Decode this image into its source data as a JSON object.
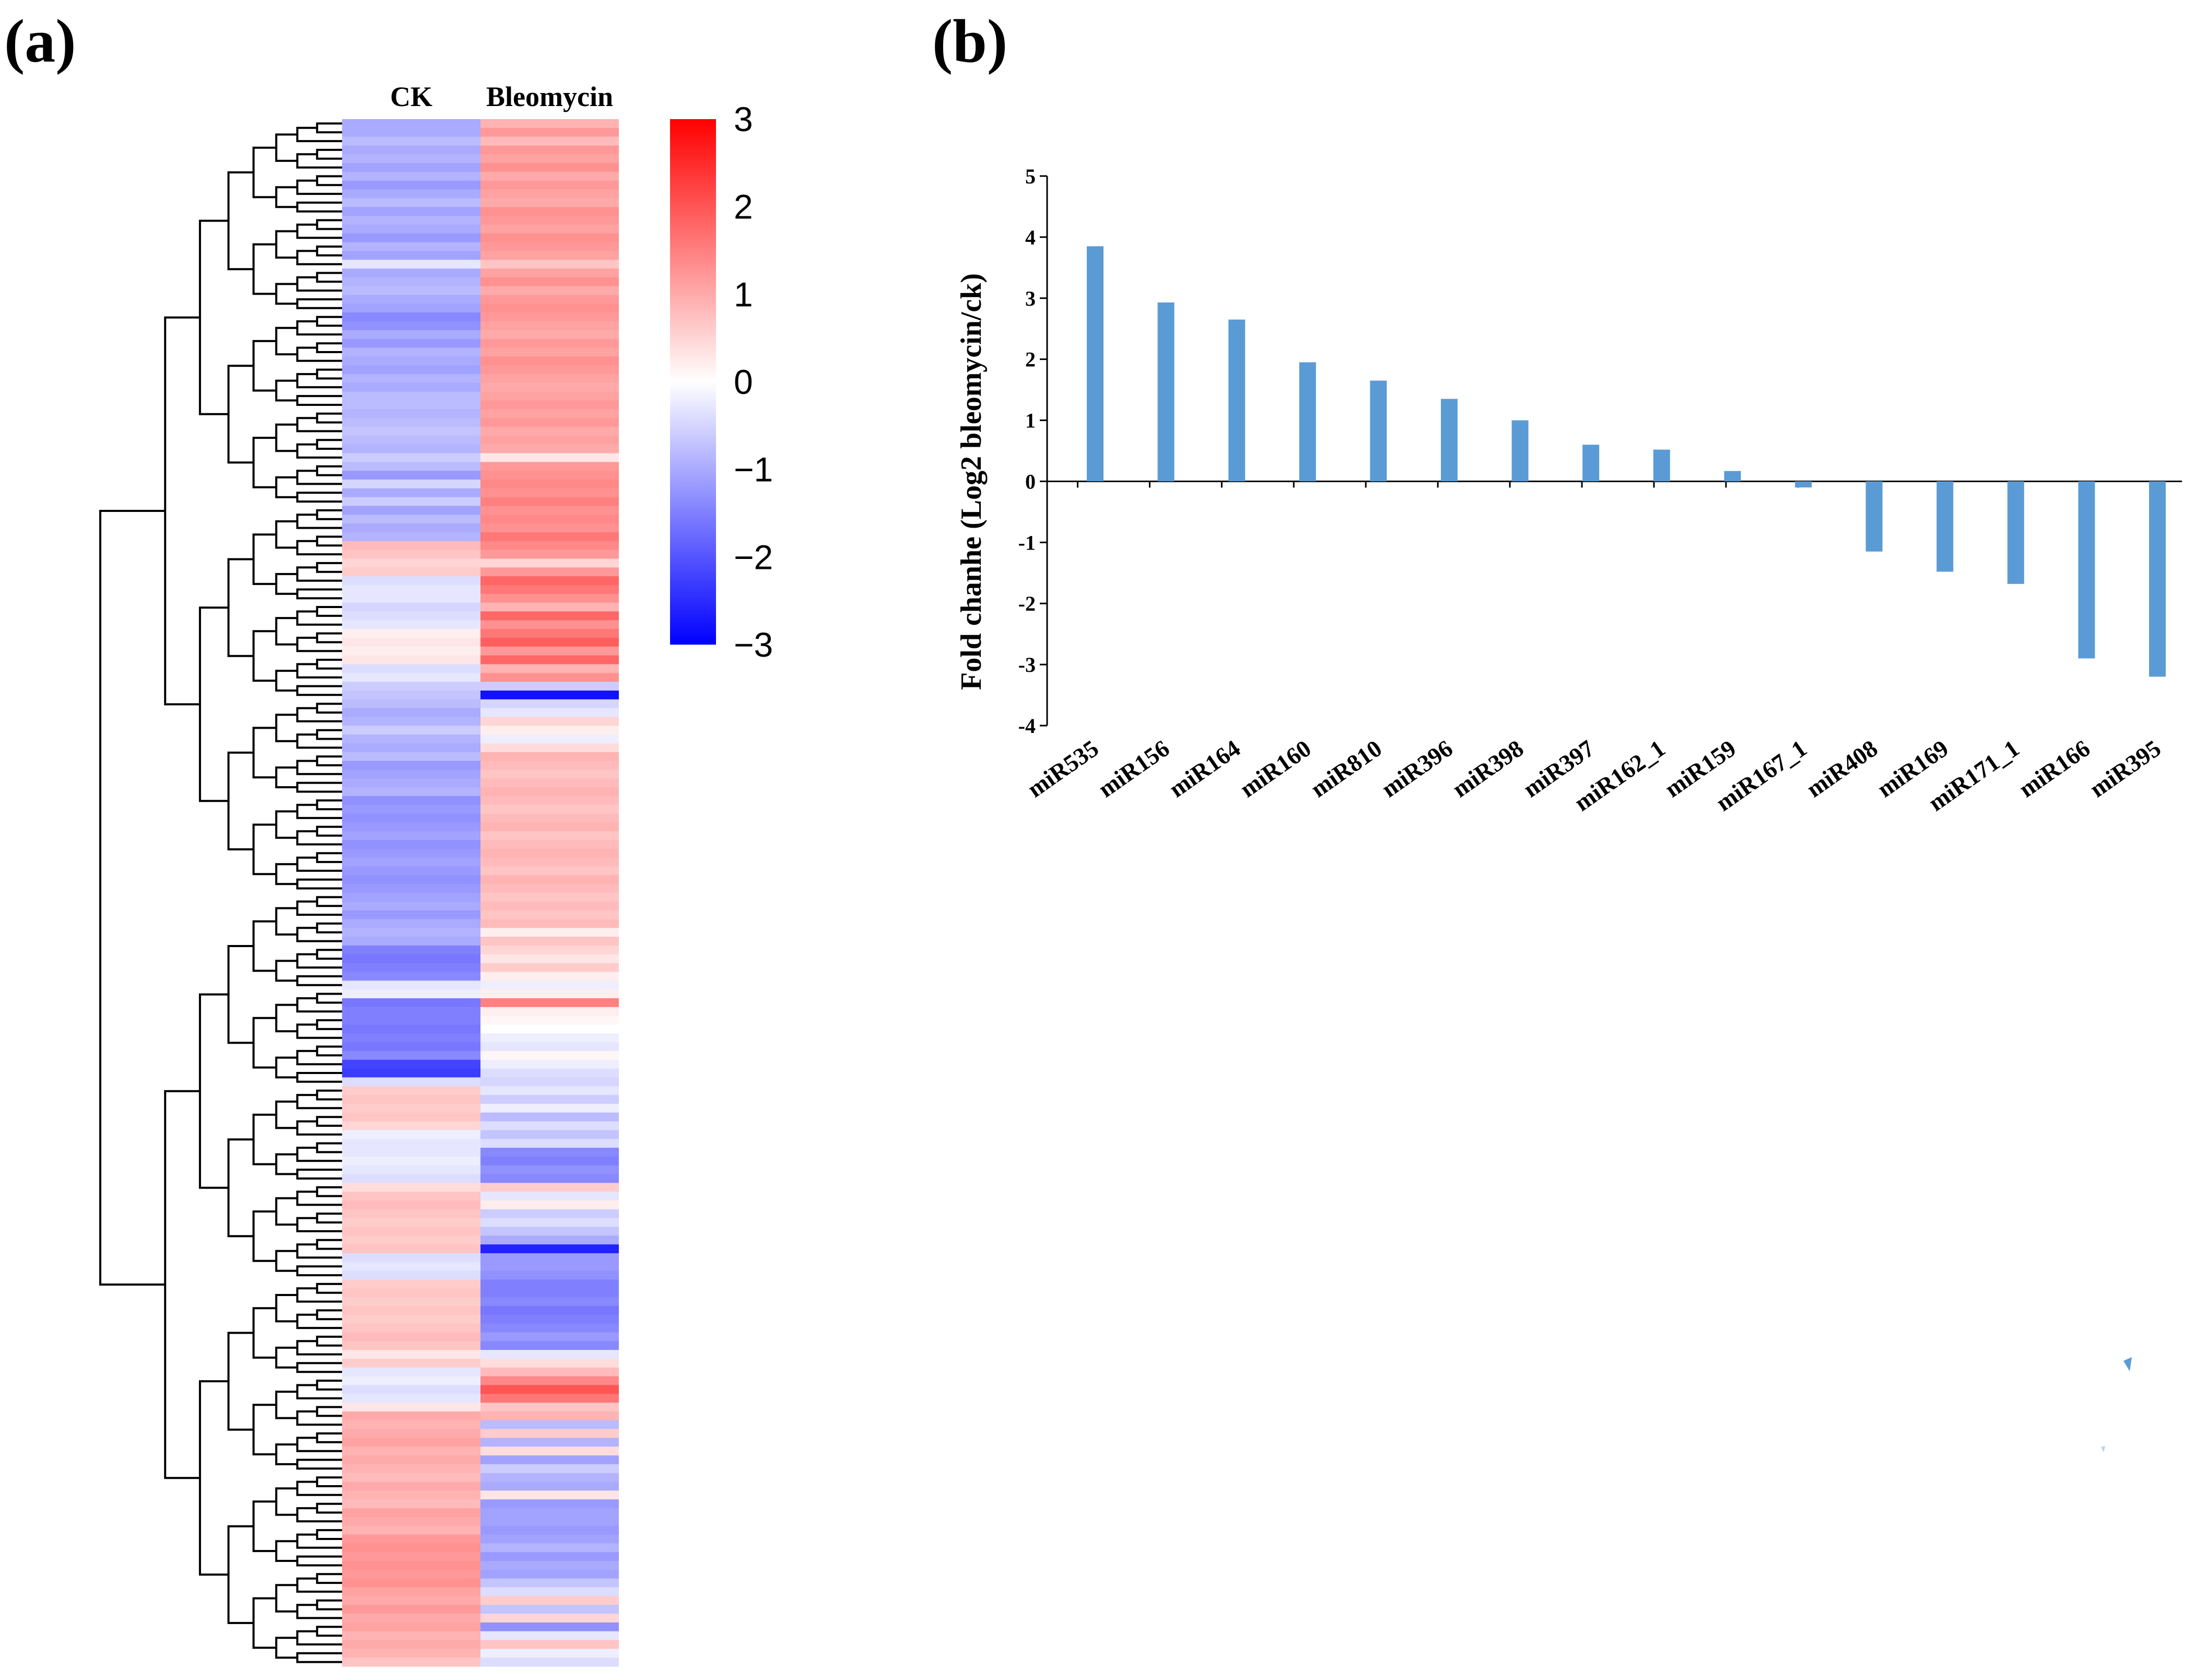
{
  "panel_labels": {
    "a": "(a)",
    "b": "(b)"
  },
  "chart_data": [
    {
      "type": "heatmap",
      "panel": "(a)",
      "columns": [
        "CK",
        "Bleomycin"
      ],
      "colorbar": {
        "min": -3,
        "max": 3,
        "ticks": [
          "3",
          "2",
          "1",
          "0",
          "−1",
          "−2",
          "−3"
        ],
        "colors": {
          "low": "#0000ff",
          "mid": "#ffffff",
          "high": "#ff0000"
        }
      },
      "dendrogram": "hierarchical clustering tree on left, rows clustered",
      "rows": [
        [
          -1.0,
          0.9
        ],
        [
          -1.0,
          1.2
        ],
        [
          -0.8,
          0.8
        ],
        [
          -1.0,
          1.2
        ],
        [
          -0.9,
          1.1
        ],
        [
          -1.1,
          1.3
        ],
        [
          -0.9,
          1.0
        ],
        [
          -1.2,
          1.2
        ],
        [
          -1.0,
          1.1
        ],
        [
          -0.8,
          1.0
        ],
        [
          -1.1,
          1.3
        ],
        [
          -0.9,
          1.2
        ],
        [
          -1.0,
          1.1
        ],
        [
          -1.2,
          1.3
        ],
        [
          -0.9,
          1.2
        ],
        [
          -1.1,
          1.1
        ],
        [
          -0.3,
          0.7
        ],
        [
          -1.0,
          1.1
        ],
        [
          -0.9,
          1.3
        ],
        [
          -0.8,
          1.0
        ],
        [
          -1.0,
          1.2
        ],
        [
          -1.1,
          1.3
        ],
        [
          -1.4,
          1.2
        ],
        [
          -1.3,
          1.1
        ],
        [
          -1.0,
          1.0
        ],
        [
          -1.2,
          1.2
        ],
        [
          -0.9,
          1.1
        ],
        [
          -1.0,
          1.3
        ],
        [
          -1.1,
          1.2
        ],
        [
          -0.9,
          1.1
        ],
        [
          -1.0,
          1.0
        ],
        [
          -0.8,
          1.1
        ],
        [
          -0.8,
          1.2
        ],
        [
          -0.9,
          1.1
        ],
        [
          -0.8,
          1.2
        ],
        [
          -0.7,
          1.0
        ],
        [
          -0.8,
          1.1
        ],
        [
          -0.9,
          1.0
        ],
        [
          -0.6,
          0.3
        ],
        [
          -0.8,
          1.2
        ],
        [
          -1.2,
          1.3
        ],
        [
          -0.5,
          1.4
        ],
        [
          -1.0,
          1.3
        ],
        [
          -0.6,
          1.5
        ],
        [
          -1.1,
          1.3
        ],
        [
          -0.8,
          1.4
        ],
        [
          -1.0,
          1.3
        ],
        [
          -0.9,
          1.6
        ],
        [
          0.8,
          1.4
        ],
        [
          0.7,
          1.2
        ],
        [
          0.5,
          0.5
        ],
        [
          0.6,
          1.2
        ],
        [
          -0.4,
          1.8
        ],
        [
          -0.3,
          1.6
        ],
        [
          -0.3,
          1.3
        ],
        [
          -0.5,
          0.9
        ],
        [
          -0.4,
          1.8
        ],
        [
          -0.3,
          1.3
        ],
        [
          0.2,
          1.6
        ],
        [
          0.3,
          1.9
        ],
        [
          0.2,
          1.2
        ],
        [
          0.3,
          1.8
        ],
        [
          -0.4,
          0.9
        ],
        [
          -0.3,
          1.3
        ],
        [
          -0.6,
          -0.6
        ],
        [
          -0.7,
          -2.8
        ],
        [
          -0.8,
          -0.5
        ],
        [
          -1.0,
          -0.3
        ],
        [
          -0.9,
          0.5
        ],
        [
          -0.6,
          0.2
        ],
        [
          -0.9,
          -0.2
        ],
        [
          -1.0,
          0.4
        ],
        [
          -0.8,
          0.9
        ],
        [
          -1.2,
          0.8
        ],
        [
          -1.1,
          0.7
        ],
        [
          -1.0,
          0.8
        ],
        [
          -0.9,
          0.9
        ],
        [
          -1.3,
          0.8
        ],
        [
          -1.2,
          0.7
        ],
        [
          -1.3,
          0.8
        ],
        [
          -1.2,
          0.9
        ],
        [
          -1.1,
          0.7
        ],
        [
          -1.3,
          0.8
        ],
        [
          -1.2,
          0.9
        ],
        [
          -1.1,
          0.8
        ],
        [
          -1.2,
          0.7
        ],
        [
          -1.3,
          0.9
        ],
        [
          -1.2,
          0.8
        ],
        [
          -1.1,
          0.7
        ],
        [
          -1.0,
          0.8
        ],
        [
          -1.2,
          0.7
        ],
        [
          -1.0,
          0.8
        ],
        [
          -0.9,
          0.2
        ],
        [
          -1.0,
          0.7
        ],
        [
          -1.5,
          0.5
        ],
        [
          -1.6,
          0.3
        ],
        [
          -1.5,
          0.6
        ],
        [
          -1.4,
          0.2
        ],
        [
          -0.3,
          -0.2
        ],
        [
          -0.2,
          0.2
        ],
        [
          -1.6,
          1.5
        ],
        [
          -1.5,
          0.2
        ],
        [
          -1.5,
          0.1
        ],
        [
          -1.6,
          0.0
        ],
        [
          -1.5,
          -0.2
        ],
        [
          -1.6,
          -0.3
        ],
        [
          -1.4,
          0.1
        ],
        [
          -2.2,
          -0.2
        ],
        [
          -2.3,
          -0.4
        ],
        [
          -0.4,
          -0.5
        ],
        [
          0.6,
          -0.3
        ],
        [
          0.7,
          -0.6
        ],
        [
          0.6,
          -0.2
        ],
        [
          0.7,
          -0.8
        ],
        [
          0.5,
          -0.4
        ],
        [
          -0.2,
          -0.7
        ],
        [
          -0.3,
          -0.4
        ],
        [
          -0.3,
          -1.4
        ],
        [
          -0.2,
          -1.5
        ],
        [
          -0.3,
          -1.3
        ],
        [
          -0.4,
          -1.4
        ],
        [
          0.4,
          0.6
        ],
        [
          0.7,
          -0.3
        ],
        [
          0.8,
          0.2
        ],
        [
          0.7,
          -0.6
        ],
        [
          0.6,
          -0.4
        ],
        [
          0.7,
          -0.7
        ],
        [
          0.6,
          -1.0
        ],
        [
          0.7,
          -2.6
        ],
        [
          -0.4,
          -1.2
        ],
        [
          -0.3,
          -1.2
        ],
        [
          -0.4,
          -1.3
        ],
        [
          0.6,
          -1.5
        ],
        [
          0.7,
          -1.5
        ],
        [
          0.6,
          -1.4
        ],
        [
          0.7,
          -1.6
        ],
        [
          0.6,
          -1.5
        ],
        [
          0.7,
          -1.4
        ],
        [
          0.8,
          -1.2
        ],
        [
          0.7,
          -1.4
        ],
        [
          0.3,
          -0.3
        ],
        [
          0.6,
          0.4
        ],
        [
          -0.3,
          0.8
        ],
        [
          -0.2,
          1.4
        ],
        [
          -0.4,
          2.0
        ],
        [
          -0.3,
          1.6
        ],
        [
          0.3,
          0.7
        ],
        [
          1.0,
          0.9
        ],
        [
          0.9,
          -0.8
        ],
        [
          1.0,
          0.6
        ],
        [
          1.1,
          -0.9
        ],
        [
          0.9,
          0.4
        ],
        [
          1.0,
          -1.1
        ],
        [
          0.9,
          -0.6
        ],
        [
          0.8,
          -0.9
        ],
        [
          1.0,
          -1.0
        ],
        [
          0.9,
          0.3
        ],
        [
          0.8,
          -1.2
        ],
        [
          1.1,
          -1.1
        ],
        [
          1.0,
          -1.1
        ],
        [
          0.9,
          -1.2
        ],
        [
          1.2,
          -1.1
        ],
        [
          1.3,
          -0.9
        ],
        [
          1.2,
          -1.2
        ],
        [
          1.3,
          -1.0
        ],
        [
          1.2,
          -1.1
        ],
        [
          1.3,
          -0.7
        ],
        [
          1.1,
          -0.4
        ],
        [
          1.0,
          0.6
        ],
        [
          1.2,
          -0.7
        ],
        [
          1.0,
          0.5
        ],
        [
          1.1,
          -1.3
        ],
        [
          0.9,
          -0.3
        ],
        [
          1.0,
          0.7
        ],
        [
          0.9,
          -0.2
        ],
        [
          0.7,
          -0.4
        ]
      ]
    },
    {
      "type": "bar",
      "panel": "(b)",
      "ylabel": "Fold chanhe (Log2 bleomycin/ck)",
      "xlabel": "",
      "ylim": [
        -4,
        5
      ],
      "yticks": [
        "5",
        "4",
        "3",
        "2",
        "1",
        "0",
        "-1",
        "-2",
        "-3",
        "-4"
      ],
      "bar_color": "#5b9bd5",
      "categories": [
        "miR535",
        "miR156",
        "miR164",
        "miR160",
        "miR810",
        "miR396",
        "miR398",
        "miR397",
        "miR162_1",
        "miR159",
        "miR167_1",
        "miR408",
        "miR169",
        "miR171_1",
        "miR166",
        "miR395"
      ],
      "values": [
        3.85,
        2.93,
        2.65,
        1.95,
        1.65,
        1.35,
        1.0,
        0.6,
        0.52,
        0.17,
        -0.1,
        -1.15,
        -1.48,
        -1.68,
        -2.9,
        -3.2
      ]
    }
  ]
}
